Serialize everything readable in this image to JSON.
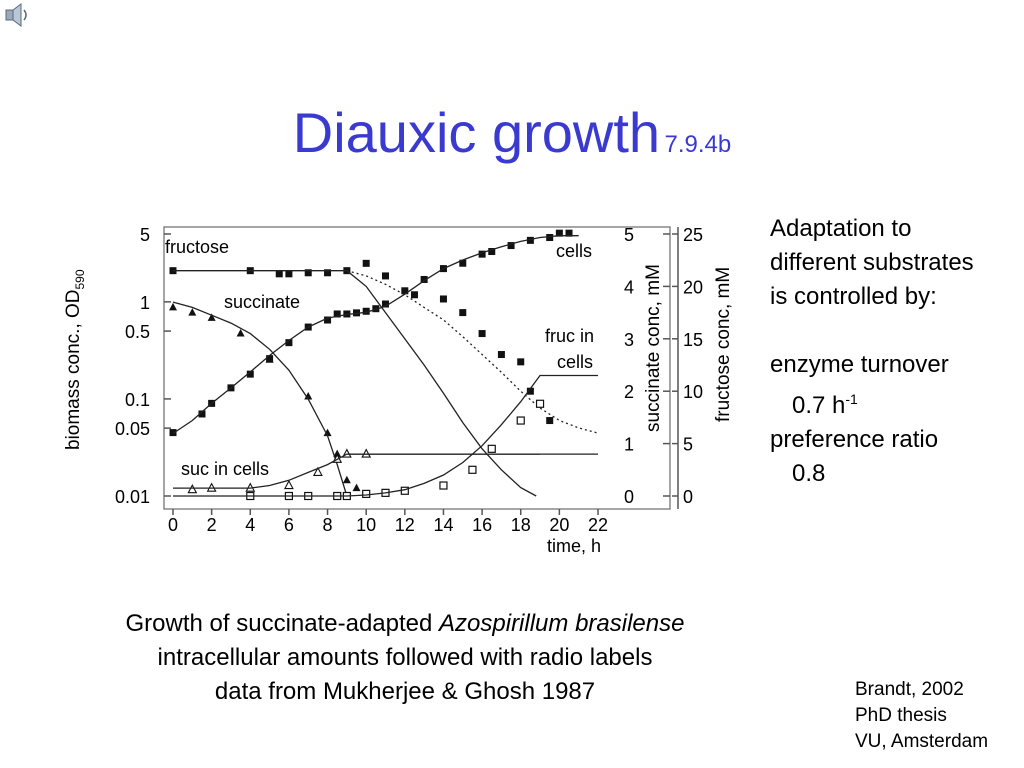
{
  "slide": {
    "title_main": "Diauxic growth",
    "title_ref": "7.9.4b",
    "speaker_icon": "speaker-icon"
  },
  "side_text": {
    "line1": "Adaptation to",
    "line2": "different substrates",
    "line3": "is controlled by:",
    "turnover_label": "enzyme turnover",
    "turnover_value": "0.7 h",
    "turnover_exp": "-1",
    "pref_label": "preference ratio",
    "pref_value": "0.8"
  },
  "caption": {
    "line1_pre": "Growth of succinate-adapted ",
    "line1_italic": "Azospirillum brasilense",
    "line2": "intracellular amounts followed with radio labels",
    "line3": "data from Mukherjee & Ghosh 1987"
  },
  "reference": {
    "line1": "Brandt, 2002",
    "line2": "PhD thesis",
    "line3": "VU, Amsterdam"
  },
  "chart_data": {
    "type": "scatter",
    "xlabel": "time, h",
    "xlim": [
      0,
      22
    ],
    "x_ticks": [
      0,
      2,
      4,
      6,
      8,
      10,
      12,
      14,
      16,
      18,
      20,
      22
    ],
    "y_left_label": "biomass conc., OD",
    "y_left_label_sub": "590",
    "y_left_scale": "log",
    "y_left_ticks": [
      {
        "v": 0.01,
        "label": "0.01"
      },
      {
        "v": 0.05,
        "label": "0.05"
      },
      {
        "v": 0.1,
        "label": "0.1"
      },
      {
        "v": 0.5,
        "label": "0.5"
      },
      {
        "v": 1,
        "label": "1"
      },
      {
        "v": 5,
        "label": "5"
      }
    ],
    "y_succ_label": "succinate conc, mM",
    "y_succ_lim": [
      0,
      5
    ],
    "y_succ_ticks": [
      0,
      1,
      2,
      3,
      4,
      5
    ],
    "y_fruc_label": "fructose conc, mM",
    "y_fruc_lim": [
      0,
      25
    ],
    "y_fruc_ticks": [
      0,
      5,
      10,
      15,
      20,
      25
    ],
    "grid": false,
    "annotations": [
      {
        "text": "fructose"
      },
      {
        "text": "succinate"
      },
      {
        "text": "cells"
      },
      {
        "text": "fruc in"
      },
      {
        "text": "cells"
      },
      {
        "text": "suc in cells"
      }
    ],
    "series": [
      {
        "axis": "biomass",
        "marker": "square-filled",
        "points": [
          [
            0,
            0.045
          ],
          [
            1.5,
            0.07
          ],
          [
            2,
            0.09
          ],
          [
            3,
            0.13
          ],
          [
            4,
            0.18
          ],
          [
            5,
            0.26
          ],
          [
            6,
            0.38
          ],
          [
            7,
            0.55
          ],
          [
            8,
            0.65
          ],
          [
            8.5,
            0.75
          ],
          [
            9,
            0.75
          ],
          [
            9.5,
            0.77
          ],
          [
            10,
            0.8
          ],
          [
            10.5,
            0.85
          ],
          [
            11,
            0.95
          ],
          [
            12,
            1.3
          ],
          [
            13,
            1.7
          ],
          [
            14,
            2.2
          ],
          [
            15,
            2.5
          ],
          [
            16,
            3.1
          ],
          [
            16.5,
            3.3
          ],
          [
            17.5,
            3.8
          ],
          [
            18.5,
            4.3
          ],
          [
            19.5,
            4.6
          ],
          [
            20,
            5.1
          ],
          [
            20.5,
            5.1
          ]
        ]
      },
      {
        "axis": "biomass",
        "marker": "curve",
        "points": [
          [
            0,
            0.044
          ],
          [
            1,
            0.06
          ],
          [
            2,
            0.09
          ],
          [
            3,
            0.13
          ],
          [
            4,
            0.19
          ],
          [
            5,
            0.28
          ],
          [
            6,
            0.4
          ],
          [
            7,
            0.55
          ],
          [
            8,
            0.68
          ],
          [
            9,
            0.74
          ],
          [
            10,
            0.78
          ],
          [
            11,
            0.9
          ],
          [
            12,
            1.2
          ],
          [
            13,
            1.65
          ],
          [
            14,
            2.2
          ],
          [
            15,
            2.7
          ],
          [
            16,
            3.2
          ],
          [
            17,
            3.7
          ],
          [
            18,
            4.2
          ],
          [
            19,
            4.6
          ],
          [
            20,
            4.8
          ],
          [
            21,
            4.8
          ]
        ]
      },
      {
        "axis": "fructose",
        "marker": "square-filled",
        "points": [
          [
            0,
            21.5
          ],
          [
            4,
            21.5
          ],
          [
            5.5,
            21.2
          ],
          [
            6,
            21.2
          ],
          [
            7,
            21.3
          ],
          [
            8,
            21.3
          ],
          [
            9,
            21.5
          ],
          [
            10,
            22.2
          ],
          [
            11,
            21
          ],
          [
            12.5,
            19.2
          ],
          [
            14,
            18.8
          ],
          [
            15,
            17.5
          ],
          [
            16,
            15.5
          ],
          [
            17,
            13.5
          ],
          [
            18,
            12.8
          ],
          [
            18.5,
            10
          ],
          [
            19,
            8.8
          ],
          [
            19.5,
            7.2
          ]
        ]
      },
      {
        "axis": "fructose",
        "marker": "curve",
        "points": [
          [
            0,
            21.5
          ],
          [
            9,
            21.5
          ],
          [
            10,
            20
          ],
          [
            11,
            17.5
          ],
          [
            12,
            15
          ],
          [
            13,
            12.5
          ],
          [
            14,
            9.8
          ],
          [
            15,
            7
          ],
          [
            16,
            4.5
          ],
          [
            17,
            2.5
          ],
          [
            18,
            0.8
          ],
          [
            18.8,
            0
          ]
        ]
      },
      {
        "axis": "fructose",
        "marker": "dotted-curve",
        "points": [
          [
            9,
            21.5
          ],
          [
            10,
            21
          ],
          [
            11,
            20.2
          ],
          [
            12,
            19.2
          ],
          [
            13,
            18
          ],
          [
            14,
            16.8
          ],
          [
            15,
            15.2
          ],
          [
            16,
            13.5
          ],
          [
            17,
            11.8
          ],
          [
            18,
            10
          ],
          [
            19,
            8.4
          ],
          [
            20,
            7.2
          ],
          [
            21,
            6.5
          ],
          [
            22,
            6
          ]
        ]
      },
      {
        "axis": "succinate",
        "marker": "triangle-filled",
        "points": [
          [
            0,
            3.6
          ],
          [
            1,
            3.5
          ],
          [
            2,
            3.4
          ],
          [
            3.5,
            3.1
          ],
          [
            5,
            2.6
          ],
          [
            7,
            1.9
          ],
          [
            8,
            1.2
          ],
          [
            8.5,
            0.8
          ],
          [
            9,
            0.3
          ],
          [
            9.5,
            0.15
          ]
        ]
      },
      {
        "axis": "succinate",
        "marker": "curve",
        "points": [
          [
            0,
            3.7
          ],
          [
            1,
            3.6
          ],
          [
            2,
            3.45
          ],
          [
            3,
            3.3
          ],
          [
            4,
            3.1
          ],
          [
            5,
            2.8
          ],
          [
            6,
            2.4
          ],
          [
            7,
            1.85
          ],
          [
            8,
            1.15
          ],
          [
            8.5,
            0.6
          ],
          [
            9,
            0
          ]
        ]
      },
      {
        "axis": "succinate",
        "marker": "triangle-open",
        "points": [
          [
            1,
            0.12
          ],
          [
            2,
            0.15
          ],
          [
            4,
            0.15
          ],
          [
            6,
            0.2
          ],
          [
            7.5,
            0.45
          ],
          [
            8.5,
            0.7
          ],
          [
            9,
            0.8
          ],
          [
            10,
            0.8
          ]
        ]
      },
      {
        "axis": "succinate",
        "marker": "curve",
        "points": [
          [
            0,
            0.15
          ],
          [
            2,
            0.15
          ],
          [
            4,
            0.15
          ],
          [
            5,
            0.2
          ],
          [
            6,
            0.3
          ],
          [
            7,
            0.45
          ],
          [
            8,
            0.6
          ],
          [
            9,
            0.8
          ],
          [
            22,
            0.8
          ]
        ]
      },
      {
        "axis": "fructose",
        "marker": "square-open",
        "points": [
          [
            4,
            0
          ],
          [
            6,
            0
          ],
          [
            7,
            0
          ],
          [
            8.5,
            0
          ],
          [
            9,
            0
          ],
          [
            10,
            0.2
          ],
          [
            11,
            0.3
          ],
          [
            12,
            0.5
          ],
          [
            14,
            1
          ],
          [
            15.5,
            2.5
          ],
          [
            16.5,
            4.5
          ],
          [
            18,
            7.2
          ],
          [
            19,
            8.8
          ]
        ]
      },
      {
        "axis": "fructose",
        "marker": "curve",
        "points": [
          [
            0,
            0
          ],
          [
            9,
            0
          ],
          [
            10,
            0.1
          ],
          [
            11,
            0.3
          ],
          [
            12,
            0.6
          ],
          [
            13,
            1.2
          ],
          [
            14,
            2
          ],
          [
            15,
            3.2
          ],
          [
            16,
            4.8
          ],
          [
            17,
            6.8
          ],
          [
            18,
            9
          ],
          [
            19,
            11.5
          ],
          [
            22,
            11.5
          ]
        ]
      },
      {
        "axis": "succinate",
        "marker": "curve",
        "points": [
          [
            9,
            0.8
          ],
          [
            14,
            0.8
          ],
          [
            15,
            0.8
          ],
          [
            16,
            0.8
          ],
          [
            17,
            0.8
          ],
          [
            18,
            0.8
          ],
          [
            19,
            0.8
          ]
        ]
      }
    ]
  }
}
